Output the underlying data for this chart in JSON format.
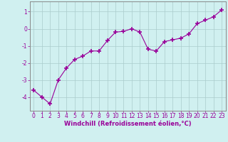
{
  "x": [
    0,
    1,
    2,
    3,
    4,
    5,
    6,
    7,
    8,
    9,
    10,
    11,
    12,
    13,
    14,
    15,
    16,
    17,
    18,
    19,
    20,
    21,
    22,
    23
  ],
  "y": [
    -3.6,
    -4.0,
    -4.4,
    -3.0,
    -2.3,
    -1.8,
    -1.6,
    -1.3,
    -1.3,
    -0.7,
    -0.2,
    -0.15,
    0.0,
    -0.2,
    -1.2,
    -1.3,
    -0.75,
    -0.65,
    -0.55,
    -0.3,
    0.3,
    0.5,
    0.7,
    1.1
  ],
  "line_color": "#990099",
  "marker": "+",
  "marker_size": 4,
  "background_color": "#d0f0f0",
  "grid_color": "#aacccc",
  "xlabel": "Windchill (Refroidissement éolien,°C)",
  "xlabel_color": "#990099",
  "tick_color": "#990099",
  "spine_color": "#888888",
  "ylim": [
    -4.8,
    1.6
  ],
  "xlim": [
    -0.5,
    23.5
  ],
  "yticks": [
    -4,
    -3,
    -2,
    -1,
    0,
    1
  ],
  "xticks": [
    0,
    1,
    2,
    3,
    4,
    5,
    6,
    7,
    8,
    9,
    10,
    11,
    12,
    13,
    14,
    15,
    16,
    17,
    18,
    19,
    20,
    21,
    22,
    23
  ],
  "tick_fontsize": 5.5,
  "xlabel_fontsize": 6.0
}
